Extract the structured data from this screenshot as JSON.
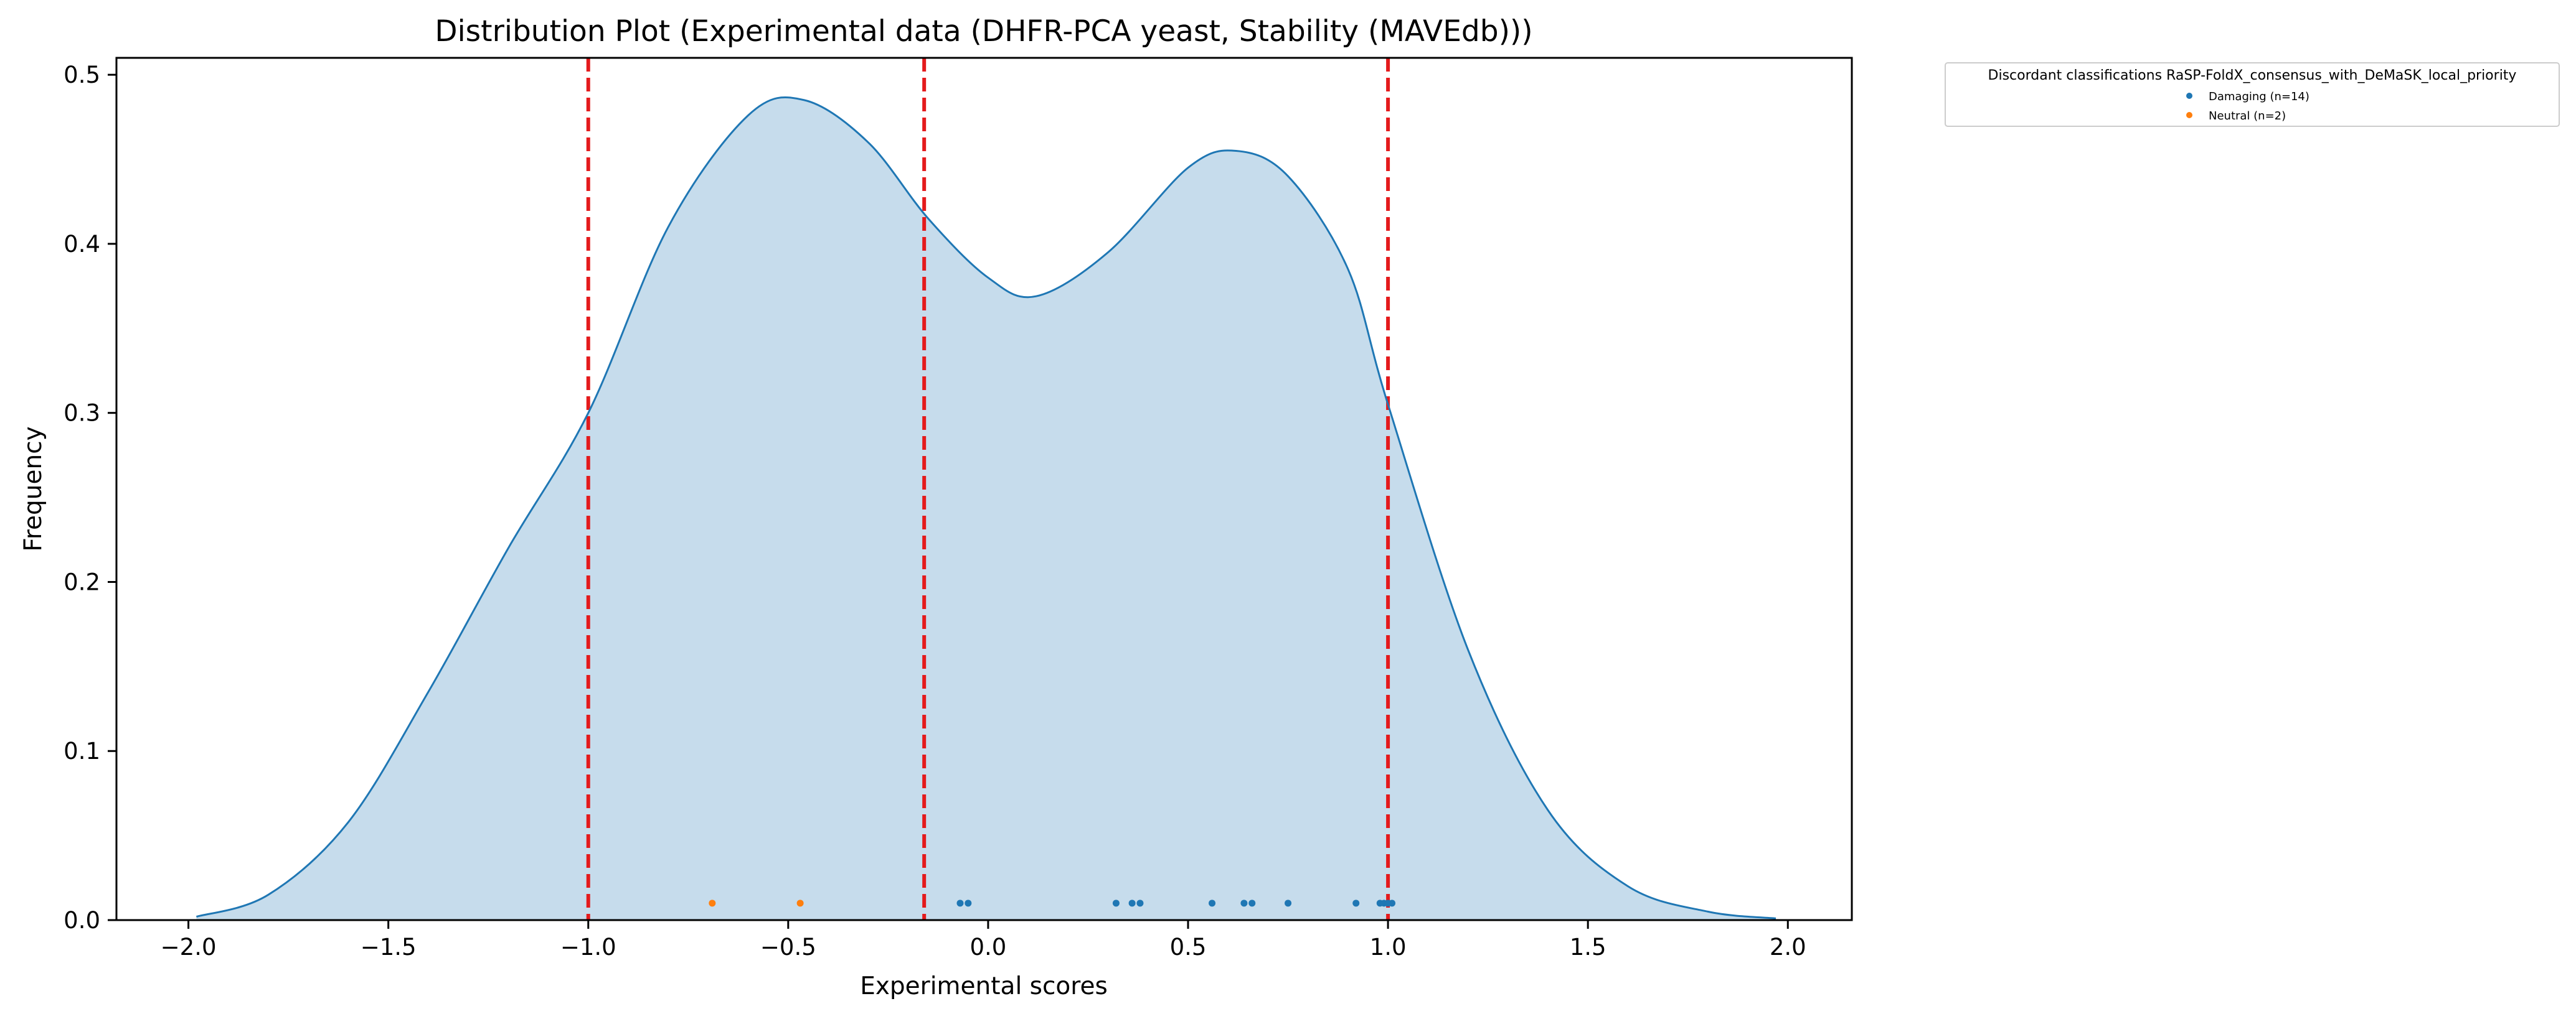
{
  "chart_data": {
    "type": "area",
    "title": "Distribution Plot (Experimental data (DHFR-PCA yeast, Stability (MAVEdb)))",
    "xlabel": "Experimental scores",
    "ylabel": "Frequency",
    "xlim": [
      -2.18,
      2.16
    ],
    "ylim": [
      0,
      0.51
    ],
    "xticks": [
      -2.0,
      -1.5,
      -1.0,
      -0.5,
      0.0,
      0.5,
      1.0,
      1.5,
      2.0
    ],
    "xtick_labels": [
      "−2.0",
      "−1.5",
      "−1.0",
      "−0.5",
      "0.0",
      "0.5",
      "1.0",
      "1.5",
      "2.0"
    ],
    "yticks": [
      0.0,
      0.1,
      0.2,
      0.3,
      0.4,
      0.5
    ],
    "ytick_labels": [
      "0.0",
      "0.1",
      "0.2",
      "0.3",
      "0.4",
      "0.5"
    ],
    "density": {
      "x": [
        -1.98,
        -1.8,
        -1.6,
        -1.4,
        -1.2,
        -1.0,
        -0.8,
        -0.6,
        -0.46,
        -0.3,
        -0.15,
        0.0,
        0.12,
        0.3,
        0.5,
        0.62,
        0.75,
        0.9,
        1.0,
        1.2,
        1.4,
        1.6,
        1.8,
        1.97
      ],
      "y": [
        0.002,
        0.015,
        0.058,
        0.135,
        0.22,
        0.3,
        0.41,
        0.476,
        0.485,
        0.46,
        0.415,
        0.38,
        0.369,
        0.395,
        0.445,
        0.455,
        0.44,
        0.385,
        0.305,
        0.16,
        0.065,
        0.02,
        0.005,
        0.001
      ],
      "color": "#1f77b4",
      "fill": "#c6dcec"
    },
    "vlines": {
      "x": [
        -1.0,
        -0.16,
        1.0
      ],
      "color": "#e41a1c",
      "style": "dashed"
    },
    "series": [
      {
        "name": "Damaging (n=14)",
        "color": "#1f77b4",
        "x": [
          -0.07,
          -0.05,
          0.32,
          0.36,
          0.38,
          0.56,
          0.64,
          0.66,
          0.75,
          0.92,
          0.98,
          0.99,
          1.0,
          1.01
        ],
        "y": [
          0.01,
          0.01,
          0.01,
          0.01,
          0.01,
          0.01,
          0.01,
          0.01,
          0.01,
          0.01,
          0.01,
          0.01,
          0.01,
          0.01
        ]
      },
      {
        "name": "Neutral (n=2)",
        "color": "#ff7f0e",
        "x": [
          -0.69,
          -0.47
        ],
        "y": [
          0.01,
          0.01
        ]
      }
    ],
    "legend": {
      "title": "Discordant classifications RaSP-FoldX_consensus_with_DeMaSK_local_priority",
      "placement": "outside-top-right"
    }
  }
}
